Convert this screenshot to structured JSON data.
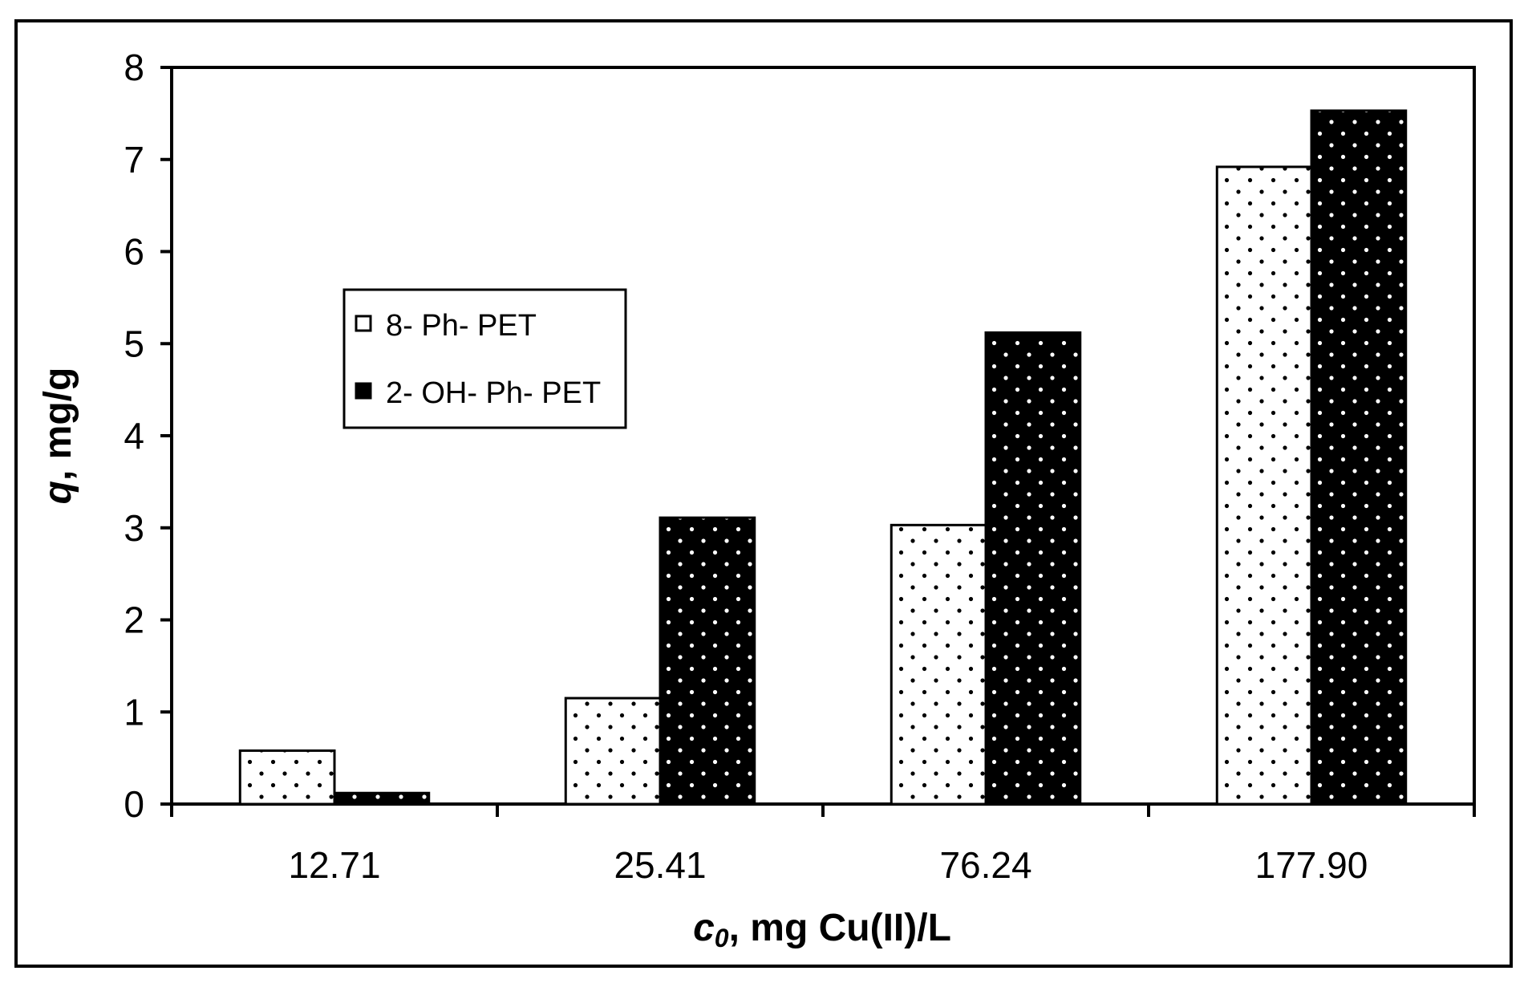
{
  "chart_data": {
    "type": "bar",
    "title": "",
    "categories": [
      "12.71",
      "25.41",
      "76.24",
      "177.90"
    ],
    "series": [
      {
        "name": "8-Ph-PET",
        "values": [
          0.58,
          1.15,
          3.03,
          6.92
        ],
        "fill": "#ffffff",
        "dot": "#000000"
      },
      {
        "name": "2-OH-Ph-PET",
        "values": [
          0.12,
          3.11,
          5.12,
          7.53
        ],
        "fill": "#000000",
        "dot": "#ffffff"
      }
    ],
    "xlabel_var": "c",
    "xlabel_sub": "0",
    "xlabel_rest": ", mg Cu(II)/L",
    "ylabel_var": "q",
    "ylabel_rest": ", mg/g",
    "ylim": [
      0,
      8
    ],
    "yticks": [
      "0",
      "1",
      "2",
      "3",
      "4",
      "5",
      "6",
      "7",
      "8"
    ],
    "grid": false,
    "legend": {
      "position": "upper-left",
      "entries": [
        "8- Ph- PET",
        "2- OH- Ph- PET"
      ]
    }
  }
}
